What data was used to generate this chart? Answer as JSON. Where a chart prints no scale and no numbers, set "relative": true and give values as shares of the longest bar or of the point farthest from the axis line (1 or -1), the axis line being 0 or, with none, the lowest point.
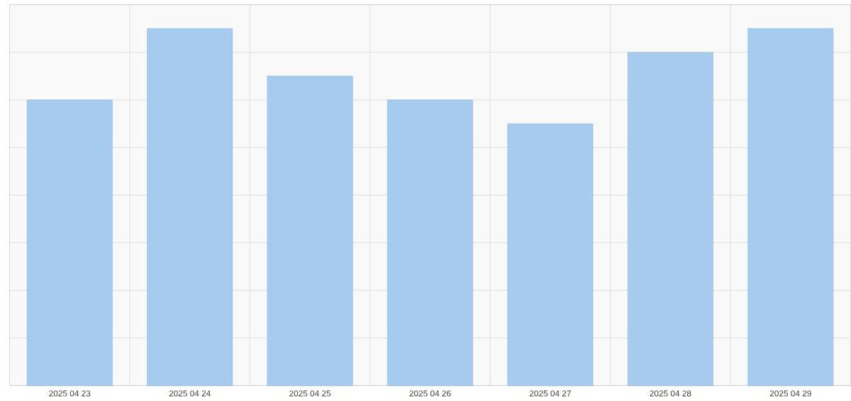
{
  "chart_data": {
    "type": "bar",
    "relative": true,
    "categories": [
      "2025 04 23",
      "2025 04 24",
      "2025 04 25",
      "2025 04 26",
      "2025 04 27",
      "2025 04 28",
      "2025 04 29"
    ],
    "values": [
      0.8,
      1,
      0.867,
      0.8,
      0.733,
      0.933,
      1
    ],
    "color": "#a6cbef",
    "grid": true
  }
}
